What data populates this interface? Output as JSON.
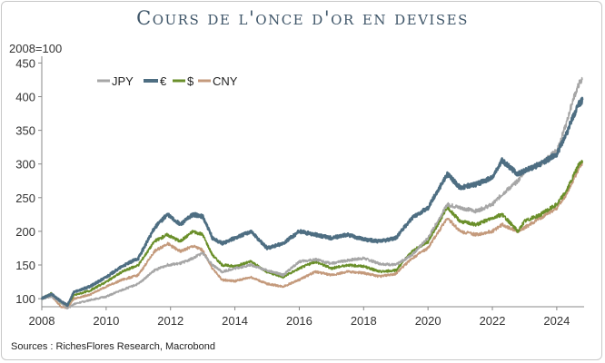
{
  "chart_data": {
    "type": "line",
    "title": "Cours de l'once d'or en devises",
    "unit_label": "2008=100",
    "xlim": [
      2008,
      2024.85
    ],
    "ylim": [
      88,
      460
    ],
    "x_ticks": [
      2008,
      2010,
      2012,
      2014,
      2016,
      2018,
      2020,
      2022,
      2024
    ],
    "y_ticks": [
      100,
      150,
      200,
      250,
      300,
      350,
      400,
      450
    ],
    "grid": false,
    "legend_position": "top-left",
    "source": "Sources : RichesFlores Research, Macrobond",
    "series": [
      {
        "name": "JPY",
        "color": "#a6a6a6",
        "x": [
          2008,
          2008.3,
          2008.6,
          2008.8,
          2009,
          2009.5,
          2010,
          2010.5,
          2011,
          2011.5,
          2011.9,
          2012.3,
          2012.7,
          2013,
          2013.3,
          2013.6,
          2014,
          2014.5,
          2015,
          2015.5,
          2016,
          2016.5,
          2017,
          2017.5,
          2018,
          2018.5,
          2019,
          2019.5,
          2020,
          2020.6,
          2021,
          2021.5,
          2022,
          2022.3,
          2022.8,
          2023,
          2023.5,
          2024,
          2024.3,
          2024.5,
          2024.7,
          2024.8
        ],
        "y": [
          100,
          103,
          94,
          85,
          92,
          98,
          103,
          113,
          122,
          142,
          150,
          152,
          160,
          168,
          150,
          140,
          145,
          150,
          142,
          135,
          155,
          158,
          152,
          157,
          160,
          152,
          150,
          165,
          190,
          240,
          235,
          230,
          240,
          255,
          275,
          290,
          300,
          320,
          360,
          395,
          420,
          425
        ]
      },
      {
        "name": "€",
        "color": "#4e6e82",
        "x": [
          2008,
          2008.3,
          2008.6,
          2008.8,
          2009,
          2009.5,
          2010,
          2010.5,
          2011,
          2011.5,
          2011.9,
          2012.3,
          2012.7,
          2013,
          2013.3,
          2013.6,
          2014,
          2014.5,
          2015,
          2015.5,
          2016,
          2016.5,
          2017,
          2017.5,
          2018,
          2018.5,
          2019,
          2019.5,
          2020,
          2020.6,
          2021,
          2021.5,
          2022,
          2022.3,
          2022.8,
          2023,
          2023.5,
          2024,
          2024.3,
          2024.5,
          2024.7,
          2024.8
        ],
        "y": [
          100,
          107,
          96,
          90,
          110,
          118,
          132,
          148,
          160,
          205,
          225,
          210,
          225,
          222,
          190,
          182,
          190,
          200,
          175,
          182,
          200,
          195,
          190,
          195,
          188,
          185,
          190,
          220,
          235,
          285,
          265,
          270,
          280,
          305,
          285,
          290,
          300,
          315,
          345,
          370,
          390,
          395
        ]
      },
      {
        "name": "$",
        "color": "#6a8f2a",
        "x": [
          2008,
          2008.3,
          2008.6,
          2008.8,
          2009,
          2009.5,
          2010,
          2010.5,
          2011,
          2011.5,
          2011.9,
          2012.3,
          2012.7,
          2013,
          2013.3,
          2013.6,
          2014,
          2014.5,
          2015,
          2015.5,
          2016,
          2016.5,
          2017,
          2017.5,
          2018,
          2018.5,
          2019,
          2019.5,
          2020,
          2020.6,
          2021,
          2021.5,
          2022,
          2022.3,
          2022.8,
          2023,
          2023.5,
          2024,
          2024.3,
          2024.5,
          2024.7,
          2024.8
        ],
        "y": [
          100,
          108,
          93,
          90,
          105,
          112,
          125,
          140,
          150,
          185,
          195,
          185,
          200,
          195,
          165,
          150,
          148,
          155,
          140,
          132,
          145,
          155,
          145,
          150,
          148,
          140,
          142,
          170,
          185,
          235,
          215,
          210,
          220,
          225,
          200,
          215,
          225,
          240,
          260,
          280,
          300,
          305
        ]
      },
      {
        "name": "CNY",
        "color": "#c49a7c",
        "x": [
          2008,
          2008.3,
          2008.6,
          2008.8,
          2009,
          2009.5,
          2010,
          2010.5,
          2011,
          2011.5,
          2011.9,
          2012.3,
          2012.7,
          2013,
          2013.3,
          2013.6,
          2014,
          2014.5,
          2015,
          2015.5,
          2016,
          2016.5,
          2017,
          2017.5,
          2018,
          2018.5,
          2019,
          2019.5,
          2020,
          2020.6,
          2021,
          2021.5,
          2022,
          2022.3,
          2022.8,
          2023,
          2023.5,
          2024,
          2024.3,
          2024.5,
          2024.7,
          2024.8
        ],
        "y": [
          100,
          104,
          88,
          86,
          100,
          106,
          118,
          128,
          135,
          170,
          182,
          170,
          178,
          172,
          145,
          128,
          126,
          132,
          122,
          118,
          128,
          140,
          135,
          140,
          138,
          133,
          137,
          160,
          175,
          220,
          200,
          195,
          200,
          210,
          200,
          205,
          220,
          235,
          255,
          275,
          295,
          303
        ]
      }
    ]
  }
}
